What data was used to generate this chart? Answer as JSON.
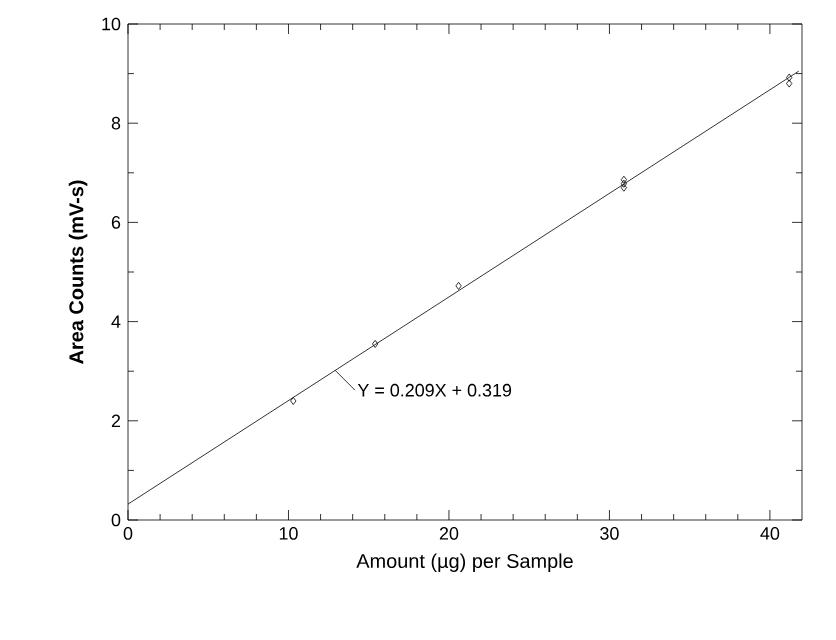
{
  "chart_data": {
    "type": "scatter",
    "xlabel": "Amount (µg) per Sample",
    "ylabel": "Area Counts (mV-s)",
    "xlim": [
      0,
      42
    ],
    "ylim": [
      0,
      10
    ],
    "xticks": [
      0,
      10,
      20,
      30,
      40
    ],
    "yticks": [
      0,
      2,
      4,
      6,
      8,
      10
    ],
    "grid": false,
    "marker": "diamond",
    "series": [
      {
        "color": "#000000",
        "x": [
          10.3,
          15.4,
          20.6,
          30.9,
          30.9,
          30.9,
          41.2,
          41.2
        ],
        "values": [
          2.4,
          3.55,
          4.72,
          6.7,
          6.78,
          6.86,
          8.8,
          8.92
        ]
      },
      {
        "type": "line",
        "color": "#000000",
        "x": [
          0,
          41.8
        ],
        "values": [
          0.32,
          9.05
        ],
        "marker": "none",
        "line_style": "solid"
      }
    ],
    "annotations": [
      {
        "text": "Y = 0.209X + 0.319",
        "x": 12.9,
        "y": 3.02
      }
    ]
  }
}
